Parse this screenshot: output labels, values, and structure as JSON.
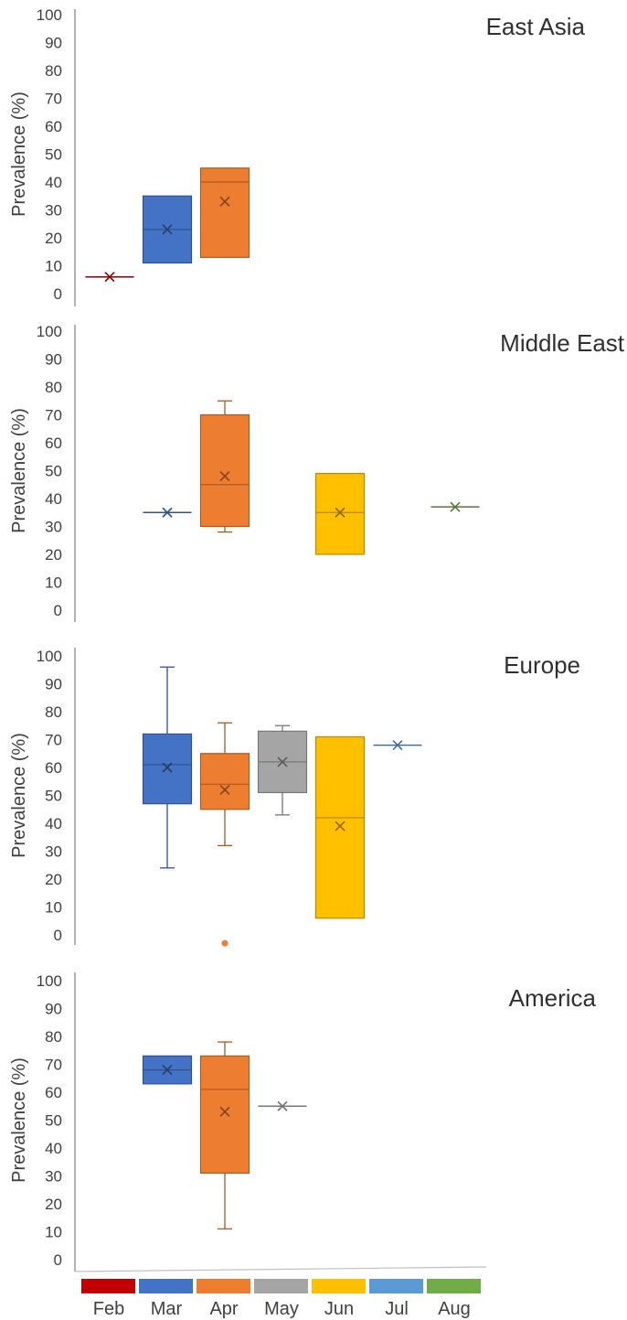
{
  "months": [
    "Feb",
    "Mar",
    "Apr",
    "May",
    "Jun",
    "Jul",
    "Aug"
  ],
  "month_colors": {
    "Feb": "#C00000",
    "Mar": "#4472C4",
    "Apr": "#ED7D31",
    "May": "#A5A5A5",
    "Jun": "#FFC000",
    "Jul": "#5B9BD5",
    "Aug": "#70AD47"
  },
  "chart_data": [
    {
      "type": "box",
      "title": "East Asia",
      "ylabel": "Prevalence (%)",
      "ylim": [
        0,
        100
      ],
      "yticks": [
        0,
        10,
        20,
        30,
        40,
        50,
        60,
        70,
        80,
        90,
        100
      ],
      "boxes": [
        {
          "month": "Feb",
          "min": 6,
          "q1": 6,
          "median": 6,
          "q3": 6,
          "max": 6,
          "mean": 6
        },
        {
          "month": "Mar",
          "min": 11,
          "q1": 11,
          "median": 23,
          "q3": 35,
          "max": 35,
          "mean": 23
        },
        {
          "month": "Apr",
          "min": 13,
          "q1": 13,
          "median": 40,
          "q3": 45,
          "max": 45,
          "mean": 33
        }
      ]
    },
    {
      "type": "box",
      "title": "Middle East",
      "ylabel": "Prevalence (%)",
      "ylim": [
        0,
        100
      ],
      "yticks": [
        0,
        10,
        20,
        30,
        40,
        50,
        60,
        70,
        80,
        90,
        100
      ],
      "boxes": [
        {
          "month": "Mar",
          "min": 35,
          "q1": 35,
          "median": 35,
          "q3": 35,
          "max": 35,
          "mean": 35
        },
        {
          "month": "Apr",
          "min": 28,
          "q1": 30,
          "median": 45,
          "q3": 70,
          "max": 75,
          "mean": 48
        },
        {
          "month": "Jun",
          "min": 20,
          "q1": 20,
          "median": 35,
          "q3": 49,
          "max": 49,
          "mean": 35
        },
        {
          "month": "Aug",
          "min": 37,
          "q1": 37,
          "median": 37,
          "q3": 37,
          "max": 37,
          "mean": 37
        }
      ]
    },
    {
      "type": "box",
      "title": "Europe",
      "ylabel": "Prevalence (%)",
      "ylim": [
        0,
        100
      ],
      "yticks": [
        0,
        10,
        20,
        30,
        40,
        50,
        60,
        70,
        80,
        90,
        100
      ],
      "boxes": [
        {
          "month": "Mar",
          "min": 24,
          "q1": 47,
          "median": 61,
          "q3": 72,
          "max": 96,
          "mean": 60
        },
        {
          "month": "Apr",
          "min": 32,
          "q1": 45,
          "median": 54,
          "q3": 65,
          "max": 76,
          "mean": 52,
          "outliers": [
            -3
          ]
        },
        {
          "month": "May",
          "min": 43,
          "q1": 51,
          "median": 62,
          "q3": 73,
          "max": 75,
          "mean": 62
        },
        {
          "month": "Jun",
          "min": 6,
          "q1": 6,
          "median": 42,
          "q3": 71,
          "max": 71,
          "mean": 39
        },
        {
          "month": "Jul",
          "min": 68,
          "q1": 68,
          "median": 68,
          "q3": 68,
          "max": 68,
          "mean": 68
        }
      ]
    },
    {
      "type": "box",
      "title": "America",
      "ylabel": "Prevalence (%)",
      "ylim": [
        0,
        100
      ],
      "yticks": [
        0,
        10,
        20,
        30,
        40,
        50,
        60,
        70,
        80,
        90,
        100
      ],
      "boxes": [
        {
          "month": "Mar",
          "min": 63,
          "q1": 63,
          "median": 68,
          "q3": 73,
          "max": 73,
          "mean": 68
        },
        {
          "month": "Apr",
          "min": 11,
          "q1": 31,
          "median": 61,
          "q3": 73,
          "max": 78,
          "mean": 53
        },
        {
          "month": "May",
          "min": 55,
          "q1": 55,
          "median": 55,
          "q3": 55,
          "max": 55,
          "mean": 55
        }
      ]
    }
  ],
  "legend": {
    "placement": "bottom",
    "entries": [
      "Feb",
      "Mar",
      "Apr",
      "May",
      "Jun",
      "Jul",
      "Aug"
    ]
  }
}
